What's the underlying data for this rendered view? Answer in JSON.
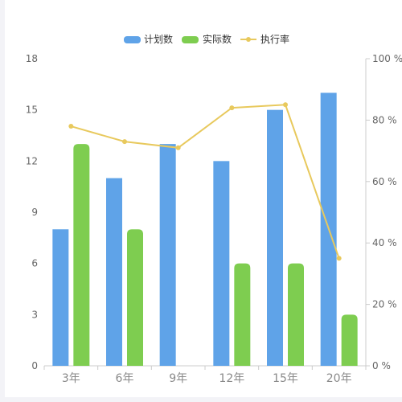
{
  "chart_data": {
    "type": "bar",
    "categories": [
      "3年",
      "6年",
      "9年",
      "12年",
      "15年",
      "20年"
    ],
    "series": [
      {
        "name": "计划数",
        "type": "bar",
        "axis": "left",
        "color": "#5fa3e8",
        "values": [
          8,
          11,
          13,
          12,
          15,
          16
        ]
      },
      {
        "name": "实际数",
        "type": "bar",
        "axis": "left",
        "color": "#7ecd50",
        "values": [
          13,
          8,
          null,
          6,
          6,
          3
        ]
      },
      {
        "name": "执行率",
        "type": "line",
        "axis": "right",
        "color": "#e8c95d",
        "values": [
          78,
          73,
          71,
          84,
          85,
          35
        ]
      }
    ],
    "y_left": {
      "min": 0,
      "max": 18,
      "ticks": [
        "0",
        "3",
        "6",
        "9",
        "12",
        "15",
        "18"
      ]
    },
    "y_right": {
      "min": 0,
      "max": 100,
      "ticks": [
        "0 %",
        "20 %",
        "40 %",
        "60 %",
        "80 %",
        "100 %"
      ]
    },
    "legend_position": "top-center",
    "grid": false
  }
}
